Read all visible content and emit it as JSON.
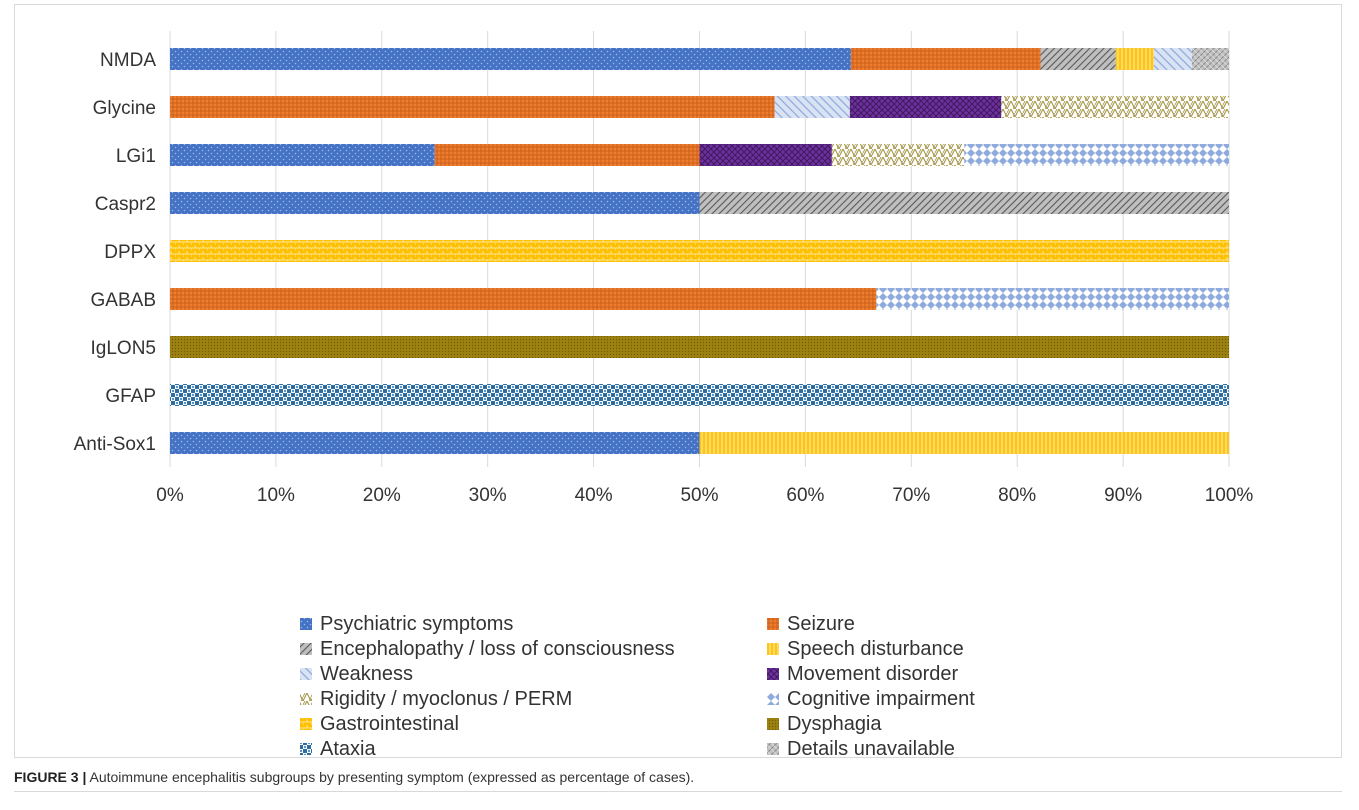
{
  "figure": {
    "label": "FIGURE 3 |",
    "caption": "Autoimmune encephalitis subgroups by presenting symptom (expressed as percentage of cases)."
  },
  "chart_data": {
    "type": "bar",
    "orientation": "horizontal",
    "stacked": "percent",
    "categories": [
      "NMDA",
      "Glycine",
      "LGi1",
      "Caspr2",
      "DPPX",
      "GABAB",
      "IgLON5",
      "GFAP",
      "Anti-Sox1"
    ],
    "xlim": [
      0,
      100
    ],
    "xticks": [
      "0%",
      "10%",
      "20%",
      "30%",
      "40%",
      "50%",
      "60%",
      "70%",
      "80%",
      "90%",
      "100%"
    ],
    "grid": "vertical",
    "legend_position": "bottom",
    "series": [
      {
        "name": "Psychiatric symptoms",
        "color": "#4472c4",
        "values": [
          64.3,
          0,
          25,
          50,
          0,
          0,
          0,
          0,
          50
        ]
      },
      {
        "name": "Seizure",
        "color": "#ed7d31",
        "values": [
          17.9,
          57.1,
          25,
          0,
          0,
          66.7,
          0,
          0,
          0
        ]
      },
      {
        "name": "Encephalopathy / loss of consciousness",
        "color": "#7f7f7f",
        "values": [
          7.1,
          0,
          0,
          50,
          0,
          0,
          0,
          0,
          0
        ]
      },
      {
        "name": "Speech disturbance",
        "color": "#ffc000",
        "values": [
          3.6,
          0,
          0,
          0,
          0,
          0,
          0,
          0,
          50
        ]
      },
      {
        "name": "Weakness",
        "color": "#8faadc",
        "values": [
          3.6,
          7.1,
          0,
          0,
          0,
          0,
          0,
          0,
          0
        ]
      },
      {
        "name": "Movement disorder",
        "color": "#7030a0",
        "values": [
          0,
          14.3,
          12.5,
          0,
          0,
          0,
          0,
          0,
          0
        ]
      },
      {
        "name": "Rigidity / myoclonus / PERM",
        "color": "#a08c3a",
        "values": [
          0,
          21.5,
          12.5,
          0,
          0,
          0,
          0,
          0,
          0
        ]
      },
      {
        "name": "Cognitive impairment",
        "color": "#6d9eeb",
        "values": [
          0,
          0,
          25,
          0,
          0,
          33.3,
          0,
          0,
          0
        ]
      },
      {
        "name": "Gastrointestinal",
        "color": "#ffc000",
        "values": [
          0,
          0,
          0,
          0,
          100,
          0,
          0,
          0,
          0
        ]
      },
      {
        "name": "Dysphagia",
        "color": "#9c8110",
        "values": [
          0,
          0,
          0,
          0,
          0,
          0,
          100,
          0,
          0
        ]
      },
      {
        "name": "Ataxia",
        "color": "#2e6e9e",
        "values": [
          0,
          0,
          0,
          0,
          0,
          0,
          0,
          100,
          0
        ]
      },
      {
        "name": "Details unavailable",
        "color": "#a5a5a5",
        "values": [
          3.5,
          0,
          0,
          0,
          0,
          0,
          0,
          0,
          0
        ]
      }
    ]
  }
}
